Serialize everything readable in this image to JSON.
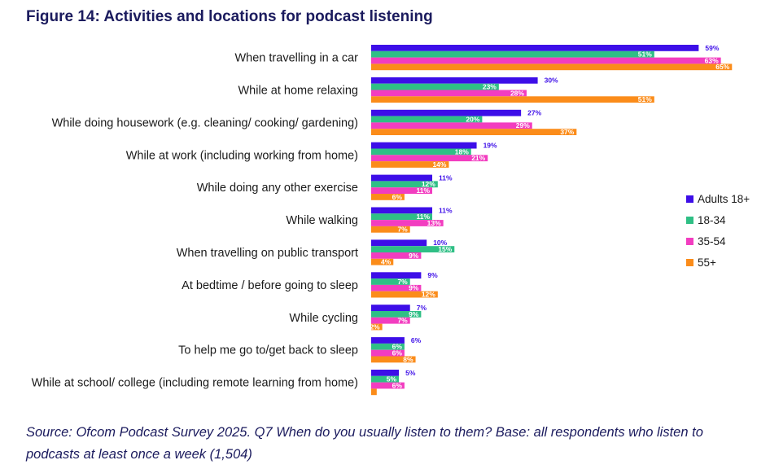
{
  "title": "Figure 14: Activities and locations for podcast listening",
  "source": "Source: Ofcom Podcast Survey 2025. Q7 When do you usually listen to them? Base: all respondents who listen to podcasts at least once a week (1,504)",
  "chart_data": {
    "type": "bar",
    "orientation": "horizontal",
    "title": "Figure 14: Activities and locations for podcast listening",
    "categories": [
      "When travelling in a car",
      "While at home relaxing",
      "While doing housework (e.g. cleaning/ cooking/ gardening)",
      "While at work (including working from home)",
      "While doing any other exercise",
      "While walking",
      "When travelling on public transport",
      "At bedtime / before going to sleep",
      "While cycling",
      "To help me go to/get back to sleep",
      "While at school/ college (including remote learning from home)"
    ],
    "series": [
      {
        "name": "Adults 18+",
        "color": "#3d0ee8",
        "values": [
          59,
          30,
          27,
          19,
          11,
          11,
          10,
          9,
          7,
          6,
          5
        ],
        "labels": [
          "59%",
          "30%",
          "27%",
          "19%",
          "11%",
          "11%",
          "10%",
          "9%",
          "7%",
          "6%",
          "5%"
        ]
      },
      {
        "name": "18-34",
        "color": "#2fbf85",
        "values": [
          51,
          23,
          20,
          18,
          12,
          11,
          15,
          7,
          9,
          6,
          5
        ],
        "labels": [
          "51%",
          "23%",
          "20%",
          "18%",
          "12%",
          "11%",
          "15%",
          "7%",
          "9%",
          "6%",
          "5%"
        ]
      },
      {
        "name": "35-54",
        "color": "#f23dc0",
        "values": [
          63,
          28,
          29,
          21,
          11,
          13,
          9,
          9,
          7,
          6,
          6
        ],
        "labels": [
          "63%",
          "28%",
          "29%",
          "21%",
          "11%",
          "13%",
          "9%",
          "9%",
          "7%",
          "6%",
          "6%"
        ]
      },
      {
        "name": "55+",
        "color": "#fb8c1a",
        "values": [
          65,
          51,
          37,
          14,
          6,
          7,
          4,
          12,
          2,
          8,
          1
        ],
        "labels": [
          "65%",
          "51%",
          "37%",
          "14%",
          "6%",
          "7%",
          "4%",
          "12%",
          "2%",
          "8%",
          ""
        ]
      }
    ],
    "xlim": [
      0,
      65
    ],
    "grid": false,
    "legend": "right"
  }
}
